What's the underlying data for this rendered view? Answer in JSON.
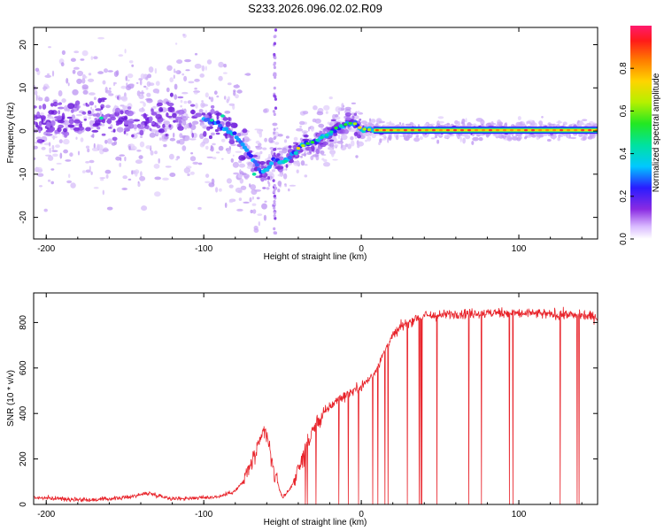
{
  "title": "S233.2026.096.02.02.R09",
  "colors": {
    "snr_line": "#e8232a",
    "axis": "#000000",
    "spectrogram_low": "#7b1fd6",
    "doppler_main": "#12a0ff"
  },
  "chart_data": [
    {
      "type": "heatmap",
      "name": "doppler-spectrogram",
      "xlabel": "Height of straight line (km)",
      "ylabel": "Frequency (Hz)",
      "xlim": [
        -208,
        150
      ],
      "ylim": [
        -25,
        24
      ],
      "x_ticks": [
        -200,
        -100,
        0,
        100
      ],
      "x_tick_labels": [
        "-200",
        "-100",
        "0",
        "100"
      ],
      "y_ticks": [
        -20,
        -10,
        0,
        10,
        20
      ],
      "y_tick_labels": [
        "-20",
        "-10",
        "0",
        "10",
        "20"
      ],
      "doppler_track": {
        "x": [
          -200,
          -180,
          -160,
          -140,
          -120,
          -100,
          -90,
          -80,
          -70,
          -62,
          -55,
          -50,
          -45,
          -40,
          -35,
          -30,
          -25,
          -20,
          -15,
          -10,
          -5,
          0,
          5,
          10,
          20,
          40,
          60,
          80,
          100,
          120,
          150
        ],
        "y": [
          2,
          3,
          3,
          1.5,
          3,
          3,
          1.5,
          -1,
          -6,
          -10,
          -6.5,
          -7.5,
          -6,
          -4,
          -3,
          -2.5,
          -1.5,
          -0.5,
          1,
          1.5,
          2,
          0.5,
          0.3,
          0.2,
          0.2,
          0.2,
          0.2,
          0.2,
          0.2,
          0.2,
          0.2
        ]
      },
      "colorbar": {
        "label": "Normalized spectral amplitude",
        "range": [
          0.0,
          1.0
        ],
        "ticks": [
          0.0,
          0.2,
          0.4,
          0.6,
          0.8
        ],
        "tick_labels": [
          "0.0",
          "0.2",
          "0.4",
          "0.6",
          "0.8"
        ]
      }
    },
    {
      "type": "line",
      "name": "snr-profile",
      "xlabel": "Height of straight line (km)",
      "ylabel": "SNR (10 * v/v)",
      "xlim": [
        -208,
        150
      ],
      "ylim": [
        0,
        930
      ],
      "x_ticks": [
        -200,
        -100,
        0,
        100
      ],
      "x_tick_labels": [
        "-200",
        "-100",
        "0",
        "100"
      ],
      "y_ticks": [
        0,
        200,
        400,
        600,
        800
      ],
      "y_tick_labels": [
        "0",
        "200",
        "400",
        "600",
        "800"
      ],
      "series": [
        {
          "name": "SNR",
          "x": [
            -208,
            -190,
            -170,
            -150,
            -135,
            -120,
            -100,
            -90,
            -80,
            -75,
            -70,
            -65,
            -62,
            -60,
            -57,
            -55,
            -50,
            -45,
            -40,
            -35,
            -30,
            -25,
            -20,
            -15,
            -10,
            -5,
            0,
            5,
            10,
            15,
            20,
            25,
            30,
            35,
            40,
            50,
            60,
            70,
            80,
            90,
            100,
            110,
            120,
            130,
            140,
            150
          ],
          "y": [
            30,
            25,
            20,
            30,
            50,
            25,
            30,
            35,
            60,
            100,
            180,
            250,
            330,
            300,
            200,
            130,
            30,
            70,
            150,
            250,
            340,
            390,
            430,
            460,
            480,
            500,
            520,
            550,
            600,
            680,
            740,
            780,
            800,
            820,
            830,
            830,
            840,
            840,
            840,
            845,
            840,
            840,
            835,
            835,
            830,
            825
          ]
        }
      ]
    }
  ]
}
